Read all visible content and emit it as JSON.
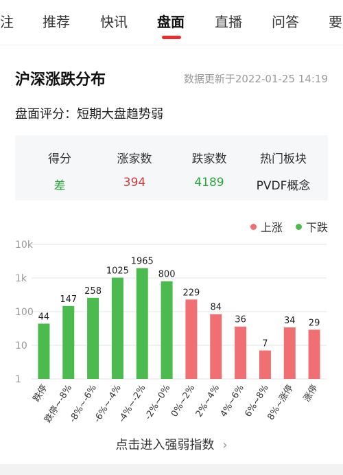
{
  "tabs": [
    {
      "label": "注",
      "active": false
    },
    {
      "label": "推荐",
      "active": false
    },
    {
      "label": "快讯",
      "active": false
    },
    {
      "label": "盘面",
      "active": true
    },
    {
      "label": "直播",
      "active": false
    },
    {
      "label": "问答",
      "active": false
    },
    {
      "label": "要",
      "active": false
    }
  ],
  "section": {
    "title": "沪深涨跌分布",
    "update_time": "数据更新于2022-01-25 14:19"
  },
  "rating": "盘面评分：短期大盘趋势弱",
  "summary": [
    {
      "label": "得分",
      "value": "差",
      "tone": "green"
    },
    {
      "label": "涨家数",
      "value": "394",
      "tone": "red"
    },
    {
      "label": "跌家数",
      "value": "4189",
      "tone": "green"
    },
    {
      "label": "热门板块",
      "value": "PVDF概念",
      "tone": "dark"
    }
  ],
  "legend": {
    "up": "上涨",
    "down": "下跌"
  },
  "colors": {
    "up": "#ef6f72",
    "down": "#4cbb4f",
    "accent": "#e93030"
  },
  "chart_data": {
    "type": "bar",
    "yscale": "log",
    "ylim": [
      1,
      10000
    ],
    "yticks": [
      "1",
      "10",
      "100",
      "1k",
      "10k"
    ],
    "categories": [
      "跌停",
      "跌停~-8%",
      "-8%~-6%",
      "-6%~-4%",
      "-4%~-2%",
      "-2%~0%",
      "0%~2%",
      "2%~4%",
      "4%~6%",
      "6%~8%",
      "8%~涨停",
      "涨停"
    ],
    "values": [
      44,
      147,
      258,
      1025,
      1965,
      800,
      229,
      84,
      36,
      7,
      34,
      29
    ],
    "value_labels": [
      "44",
      "147",
      "258",
      "1025",
      "1965",
      "800",
      "229",
      "84",
      "36",
      "7",
      "34",
      "29"
    ],
    "direction": [
      "down",
      "down",
      "down",
      "down",
      "down",
      "down",
      "up",
      "up",
      "up",
      "up",
      "up",
      "up"
    ],
    "grid": true
  },
  "link": {
    "label": "点击进入强弱指数",
    "chevron": "›"
  }
}
